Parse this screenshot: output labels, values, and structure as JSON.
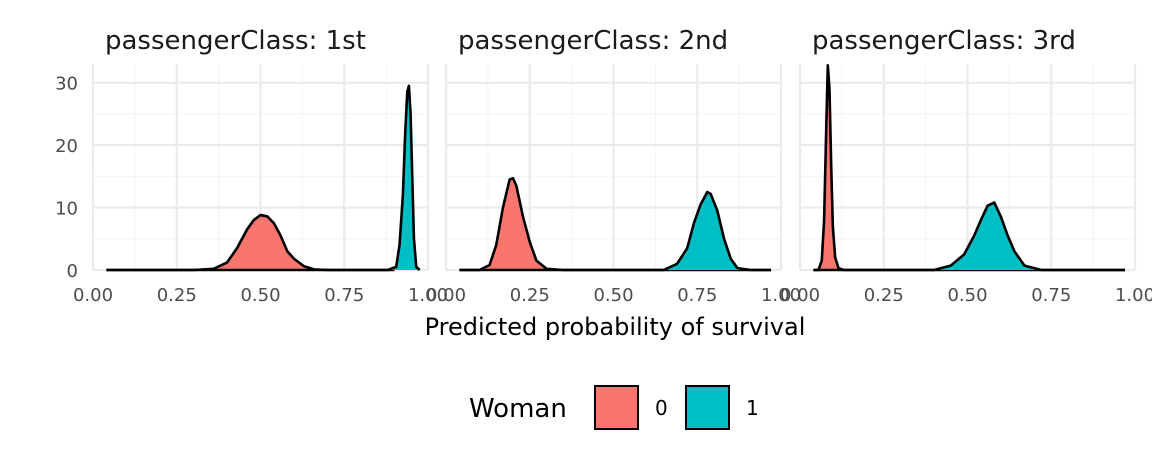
{
  "chart_data": {
    "type": "area",
    "subtype": "density",
    "xlabel": "Predicted probability of survival",
    "ylabel": "",
    "xlim": [
      0,
      1
    ],
    "ylim": [
      0,
      33
    ],
    "x_ticks": [
      "0.00",
      "0.25",
      "0.50",
      "0.75",
      "1.00"
    ],
    "y_ticks": [
      "0",
      "10",
      "20",
      "30"
    ],
    "grid": true,
    "legend": {
      "title": "Woman",
      "position": "bottom",
      "entries": [
        {
          "label": "0",
          "color": "#F8766D"
        },
        {
          "label": "1",
          "color": "#00BFC4"
        }
      ]
    },
    "panels": [
      {
        "title": "passengerClass: 1st",
        "series": [
          {
            "name": "0",
            "color": "#F8766D",
            "x": [
              0.04,
              0.3,
              0.36,
              0.4,
              0.43,
              0.46,
              0.48,
              0.5,
              0.52,
              0.54,
              0.56,
              0.58,
              0.6,
              0.63,
              0.66,
              0.7,
              0.9
            ],
            "y": [
              0,
              0,
              0.2,
              1.2,
              3.5,
              6.5,
              8.0,
              8.8,
              8.6,
              7.5,
              5.5,
              3.0,
              1.8,
              0.6,
              0.1,
              0,
              0
            ]
          },
          {
            "name": "1",
            "color": "#00BFC4",
            "x": [
              0.04,
              0.88,
              0.905,
              0.915,
              0.925,
              0.932,
              0.938,
              0.943,
              0.948,
              0.953,
              0.958,
              0.965,
              0.975
            ],
            "y": [
              0,
              0,
              0.5,
              4.0,
              12.0,
              22.0,
              28.5,
              29.5,
              25.0,
              15.0,
              5.0,
              0.5,
              0
            ]
          }
        ]
      },
      {
        "title": "passengerClass: 2nd",
        "series": [
          {
            "name": "0",
            "color": "#F8766D",
            "x": [
              0.04,
              0.1,
              0.13,
              0.15,
              0.17,
              0.19,
              0.2,
              0.21,
              0.23,
              0.25,
              0.27,
              0.3,
              0.35,
              0.97
            ],
            "y": [
              0,
              0,
              0.8,
              4.0,
              10.0,
              14.5,
              14.7,
              13.5,
              8.5,
              4.5,
              1.5,
              0.2,
              0,
              0
            ]
          },
          {
            "name": "1",
            "color": "#00BFC4",
            "x": [
              0.04,
              0.65,
              0.69,
              0.72,
              0.74,
              0.76,
              0.78,
              0.79,
              0.81,
              0.83,
              0.85,
              0.87,
              0.91,
              0.97
            ],
            "y": [
              0,
              0,
              1.0,
              3.5,
              7.5,
              10.5,
              12.5,
              12.2,
              9.5,
              5.0,
              1.8,
              0.3,
              0,
              0
            ]
          }
        ]
      },
      {
        "title": "passengerClass: 3rd",
        "series": [
          {
            "name": "0",
            "color": "#F8766D",
            "x": [
              0.04,
              0.055,
              0.065,
              0.072,
              0.078,
              0.083,
              0.088,
              0.093,
              0.098,
              0.105,
              0.115,
              0.13,
              0.97
            ],
            "y": [
              0,
              0,
              1.5,
              8.0,
              22.0,
              32.8,
              29.0,
              17.0,
              7.0,
              2.0,
              0.3,
              0,
              0
            ]
          },
          {
            "name": "1",
            "color": "#00BFC4",
            "x": [
              0.04,
              0.4,
              0.45,
              0.49,
              0.52,
              0.54,
              0.56,
              0.58,
              0.6,
              0.62,
              0.64,
              0.67,
              0.72,
              0.97
            ],
            "y": [
              0,
              0,
              0.7,
              2.5,
              5.5,
              8.0,
              10.3,
              10.8,
              8.5,
              5.5,
              3.0,
              0.7,
              0,
              0
            ]
          }
        ]
      }
    ]
  }
}
